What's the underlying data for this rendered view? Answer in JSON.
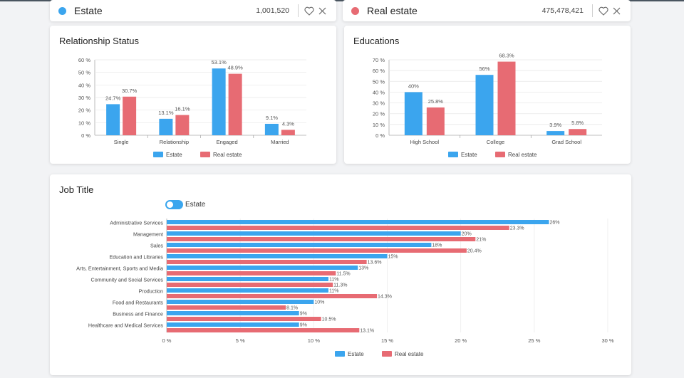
{
  "header": {
    "left": {
      "name": "Estate",
      "count": "1,001,520",
      "color": "#3ba5ee"
    },
    "right": {
      "name": "Real estate",
      "count": "475,478,421",
      "color": "#e76b73"
    }
  },
  "colors": {
    "estate": "#3ba5ee",
    "real_estate": "#e76b73"
  },
  "relationship": {
    "title": "Relationship Status"
  },
  "education": {
    "title": "Educations"
  },
  "job": {
    "title": "Job Title",
    "toggle_label": "Estate"
  },
  "chart_data": [
    {
      "type": "bar",
      "title": "Relationship Status",
      "categories": [
        "Single",
        "Relationship",
        "Engaged",
        "Married"
      ],
      "series": [
        {
          "name": "Estate",
          "values": [
            24.7,
            13.1,
            53.1,
            9.1
          ],
          "labels": [
            "24.7%",
            "13.1%",
            "53.1%",
            "9.1%"
          ]
        },
        {
          "name": "Real estate",
          "values": [
            30.7,
            16.1,
            48.9,
            4.3
          ],
          "labels": [
            "30.7%",
            "16.1%",
            "48.9%",
            "4.3%"
          ]
        }
      ],
      "ylim": [
        0,
        60
      ],
      "yticks": [
        "0 %",
        "10 %",
        "20 %",
        "30 %",
        "40 %",
        "50 %",
        "60 %"
      ],
      "legend": "bottom"
    },
    {
      "type": "bar",
      "title": "Educations",
      "categories": [
        "High School",
        "College",
        "Grad School"
      ],
      "series": [
        {
          "name": "Estate",
          "values": [
            40,
            56,
            3.9
          ],
          "labels": [
            "40%",
            "56%",
            "3.9%"
          ]
        },
        {
          "name": "Real estate",
          "values": [
            25.8,
            68.3,
            5.8
          ],
          "labels": [
            "25.8%",
            "68.3%",
            "5.8%"
          ]
        }
      ],
      "ylim": [
        0,
        70
      ],
      "yticks": [
        "0 %",
        "10 %",
        "20 %",
        "30 %",
        "40 %",
        "50 %",
        "60 %",
        "70 %"
      ],
      "legend": "bottom"
    },
    {
      "type": "bar",
      "orientation": "horizontal",
      "title": "Job Title",
      "categories": [
        "Administrative Services",
        "Management",
        "Sales",
        "Education and Libraries",
        "Arts, Entertainment, Sports and Media",
        "Community and Social Services",
        "Production",
        "Food and Restaurants",
        "Business and Finance",
        "Healthcare and Medical Services"
      ],
      "series": [
        {
          "name": "Estate",
          "values": [
            26,
            20,
            18,
            15,
            13,
            11,
            11,
            10,
            9,
            9
          ],
          "labels": [
            "26%",
            "20%",
            "18%",
            "15%",
            "13%",
            "11%",
            "11%",
            "10%",
            "9%",
            "9%"
          ]
        },
        {
          "name": "Real estate",
          "values": [
            23.3,
            21,
            20.4,
            13.6,
            11.5,
            11.3,
            14.3,
            8.1,
            10.5,
            13.1
          ],
          "labels": [
            "23.3%",
            "21%",
            "20.4%",
            "13.6%",
            "11.5%",
            "11.3%",
            "14.3%",
            "8.1%",
            "10.5%",
            "13.1%"
          ]
        }
      ],
      "xlim": [
        0,
        30
      ],
      "xticks": [
        "0 %",
        "5 %",
        "10 %",
        "15 %",
        "20 %",
        "25 %",
        "30 %"
      ],
      "legend": "bottom"
    }
  ]
}
